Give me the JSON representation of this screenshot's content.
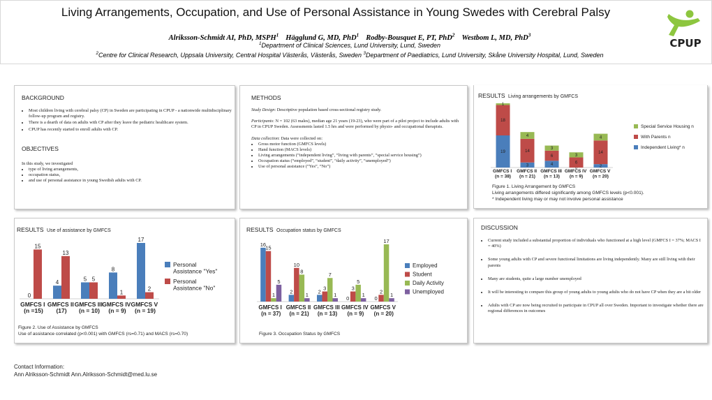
{
  "header": {
    "title": "Living Arrangements, Occupation, and Use of Personal Assistance in Young Swedes with Cerebral Palsy",
    "authors": [
      {
        "name": "Alriksson-Schmidt AI, PhD, MSPH",
        "sup": "1"
      },
      {
        "name": "Hägglund G, MD, PhD",
        "sup": "1"
      },
      {
        "name": "Rodby-Bousquet E, PT, PhD",
        "sup": "2"
      },
      {
        "name": "Westbom L, MD, PhD",
        "sup": "3"
      }
    ],
    "affiliations_line1": [
      {
        "sup": "1",
        "text": "Department of Clinical Sciences, Lund University, Lund, Sweden"
      }
    ],
    "affiliations_line2": [
      {
        "sup": "2",
        "text": "Centre for Clinical Research, Uppsala University, Central Hospital Västerås, Västerås, Sweden "
      },
      {
        "sup": "3",
        "text": "Department of Paediatrics, Lund University, Skåne University Hospital, Lund, Sweden"
      }
    ],
    "logo": "CPUP"
  },
  "background": {
    "heading": "BACKGROUND",
    "bullets": [
      "Most children living with cerebral palsy (CP) in Sweden are participating in CPUP - a nationwide  multidisciplinary follow-up program and registry.",
      "There is a dearth of data on adults with CP after they leave the pediatric healthcare system.",
      "CPUP has recently started to enroll adults with CP."
    ]
  },
  "objectives": {
    "heading": "OBJECTIVES",
    "intro": "In this study,  we investigated",
    "bullets": [
      "type of living arrangements,",
      "occupation status,",
      "and use of personal assistance in young Swedish adults with CP."
    ]
  },
  "methods": {
    "heading": "METHODS",
    "paragraphs": [
      {
        "label": "Study Design",
        "text": ": Descriptive population based cross-sectional registry study.",
        "bullets": []
      },
      {
        "label": "Participants",
        "text": ": N = 102 (63 males), median age 21 years (19-23), who were part of a pilot project to include adults with CP in CPUP Sweden. Assessments lasted 1.5 hrs and were performed by physio- and occupational therapists.",
        "bullets": []
      },
      {
        "label": "Data collection",
        "text": ": Data were collected on:",
        "bullets": [
          "Gross motor function (GMFCS levels)",
          "Hand function (MACS levels)",
          "Living arrangements (“independent living”, “living with parents”, “special service housing”)",
          "Occupation status (“employed”, “student”, “daily activity”, “unemployed”)",
          "Use of personal assistance (“Yes”, “No”)"
        ]
      }
    ]
  },
  "discussion": {
    "heading": "DISCUSSION",
    "bullets": [
      "Current study included a substantial proportion of individuals who functioned at a high level (GMFCS I = 37%; MACS I = 40%)",
      "Some young adults with CP and severe functional limitations are living independently. Many are still living with their parents",
      "Many are students, quite a large number unemployed",
      "It will be interesting to compare this group of young adults to young adults who do not have CP when they are a bit older",
      "Adults with CP are now being recruited to participate in CPUP  all over Sweden. Important to investigate whether there are regional differences in outcomes"
    ]
  },
  "contact": {
    "heading": "Contact Information:",
    "text": "Ann Alriksson-Schmidt  Ann.Alriksson-Schmidt@med.lu.se"
  },
  "chart_data": [
    {
      "type": "bar",
      "stacked": true,
      "section": "RESULTS",
      "title": "Living arrangements by GMFCS",
      "categories": [
        "GMFCS I (n = 38)",
        "GMFCS II (n = 21)",
        "GMFCS III (n = 13)",
        "GMFCS IV (n = 9)",
        "GMFCS V (n = 20)"
      ],
      "series": [
        {
          "name": "Independent Living* n",
          "color": "#4a7ebb",
          "values": [
            19,
            3,
            4,
            0,
            2
          ]
        },
        {
          "name": "With Parents n",
          "color": "#be4b48",
          "values": [
            18,
            14,
            6,
            6,
            14
          ]
        },
        {
          "name": "Special Service Housing n",
          "color": "#98b954",
          "values": [
            1,
            4,
            3,
            3,
            4
          ]
        }
      ],
      "caption": "Figure 1. Living Arrangement by GMFCS",
      "notes": [
        "Living arrangements differed significantly among GMFCS levels (p<0.001).",
        "* Independent living may or may not involve personal assistance"
      ]
    },
    {
      "type": "bar",
      "stacked": false,
      "section": "RESULTS",
      "title": "Use of assistance by GMFCS",
      "categories": [
        "GMFCS I (n =15)",
        "GMFCS II (17)",
        "GMFCS III (n = 10)",
        "GMFCS IV (n = 9)",
        "GMFCS V (n = 19)"
      ],
      "series": [
        {
          "name": "Personal Assistance \"Yes\"",
          "color": "#4a7ebb",
          "values": [
            0,
            4,
            5,
            8,
            17
          ]
        },
        {
          "name": "Personal Assistance \"No\"",
          "color": "#be4b48",
          "values": [
            15,
            13,
            5,
            1,
            2
          ]
        }
      ],
      "caption": "Figure 2. Use of Assistance by GMFCS",
      "notes": [
        "Use of assistance correlated (p<0.001) with GMFCS  (rs=0.71) and MACS (rs=0.70)"
      ]
    },
    {
      "type": "bar",
      "stacked": false,
      "section": "RESULTS",
      "title": "Occupation status by GMFCS",
      "categories": [
        "GMFCS I (n = 37)",
        "GMFCS II (n = 21)",
        "GMFCS III (n = 13)",
        "GMFCS IV (n = 9)",
        "GMFCS V (n = 20)"
      ],
      "series": [
        {
          "name": "Employed",
          "color": "#4a7ebb",
          "values": [
            16,
            2,
            2,
            0,
            0
          ]
        },
        {
          "name": "Student",
          "color": "#be4b48",
          "values": [
            15,
            10,
            3,
            3,
            2
          ]
        },
        {
          "name": "Daily Activity",
          "color": "#98b954",
          "values": [
            1,
            8,
            7,
            5,
            17
          ]
        },
        {
          "name": "Unemployed",
          "color": "#7d60a0",
          "values": [
            5,
            1,
            1,
            1,
            1
          ]
        }
      ],
      "caption": "Figure 3.  Occupation Status by GMFCS",
      "notes": []
    }
  ]
}
